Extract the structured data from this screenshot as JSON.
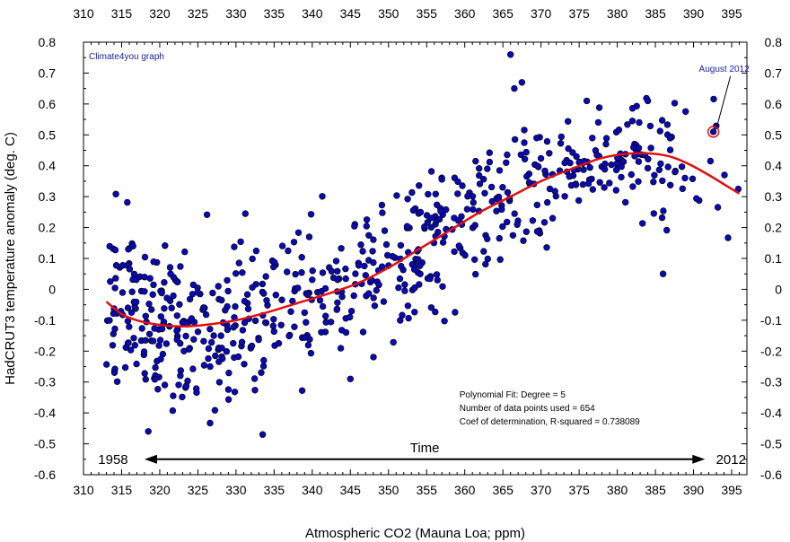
{
  "chart_data": {
    "type": "scatter",
    "xlabel": "Atmospheric CO2 (Mauna Loa; ppm)",
    "ylabel": "HadCRUT3 temperature anomaly (deg. C)",
    "xlim": [
      310,
      397
    ],
    "ylim": [
      -0.6,
      0.8
    ],
    "x_ticks": [
      310,
      315,
      320,
      325,
      330,
      335,
      340,
      345,
      350,
      355,
      360,
      365,
      370,
      375,
      380,
      385,
      390,
      395
    ],
    "y_ticks": [
      -0.6,
      -0.5,
      -0.4,
      -0.3,
      -0.2,
      -0.1,
      0,
      0.1,
      0.2,
      0.3,
      0.4,
      0.5,
      0.6,
      0.7,
      0.8
    ],
    "grid": false,
    "colors": {
      "points": "#0a0ab4",
      "fit": "#e01010",
      "note": "#1a1aa8"
    },
    "source_note": "Climate4you graph",
    "fit": {
      "label": "Polynomial Fit: Degree = 5",
      "n_points_text": "Number of data points used = 654",
      "r2_text": "Coef of determination, R-squared = 0.738089",
      "points": [
        [
          313,
          -0.04
        ],
        [
          315,
          -0.08
        ],
        [
          317,
          -0.1
        ],
        [
          320,
          -0.115
        ],
        [
          323,
          -0.12
        ],
        [
          326,
          -0.115
        ],
        [
          330,
          -0.1
        ],
        [
          334,
          -0.075
        ],
        [
          338,
          -0.045
        ],
        [
          342,
          -0.015
        ],
        [
          346,
          0.02
        ],
        [
          350,
          0.07
        ],
        [
          354,
          0.13
        ],
        [
          358,
          0.19
        ],
        [
          362,
          0.25
        ],
        [
          366,
          0.3
        ],
        [
          370,
          0.35
        ],
        [
          374,
          0.39
        ],
        [
          378,
          0.425
        ],
        [
          382,
          0.44
        ],
        [
          386,
          0.435
        ],
        [
          389,
          0.41
        ],
        [
          392,
          0.37
        ],
        [
          394,
          0.34
        ],
        [
          396,
          0.31
        ]
      ]
    },
    "highlight": {
      "label": "August 2012",
      "x": 392.6,
      "y": 0.51
    },
    "time_arrow": {
      "label": "Time",
      "start_label": "1958",
      "end_label": "2012",
      "x_start": 318,
      "x_end": 391.5,
      "y": -0.55
    },
    "scatter_ranges": [
      {
        "x0": 313,
        "x1": 318,
        "n": 60,
        "mu0": -0.04,
        "mu1": -0.07,
        "sd": 0.12
      },
      {
        "x0": 318,
        "x1": 324,
        "n": 80,
        "mu0": -0.1,
        "mu1": -0.12,
        "sd": 0.13
      },
      {
        "x0": 324,
        "x1": 330,
        "n": 60,
        "mu0": -0.12,
        "mu1": -0.1,
        "sd": 0.13
      },
      {
        "x0": 330,
        "x1": 336,
        "n": 50,
        "mu0": -0.1,
        "mu1": -0.06,
        "sd": 0.13
      },
      {
        "x0": 336,
        "x1": 342,
        "n": 45,
        "mu0": -0.05,
        "mu1": -0.01,
        "sd": 0.12
      },
      {
        "x0": 342,
        "x1": 348,
        "n": 45,
        "mu0": 0.0,
        "mu1": 0.05,
        "sd": 0.12
      },
      {
        "x0": 348,
        "x1": 354,
        "n": 55,
        "mu0": 0.06,
        "mu1": 0.13,
        "sd": 0.11
      },
      {
        "x0": 354,
        "x1": 360,
        "n": 55,
        "mu0": 0.14,
        "mu1": 0.21,
        "sd": 0.11
      },
      {
        "x0": 360,
        "x1": 366,
        "n": 45,
        "mu0": 0.22,
        "mu1": 0.3,
        "sd": 0.11
      },
      {
        "x0": 366,
        "x1": 372,
        "n": 40,
        "mu0": 0.3,
        "mu1": 0.36,
        "sd": 0.12
      },
      {
        "x0": 372,
        "x1": 378,
        "n": 40,
        "mu0": 0.38,
        "mu1": 0.42,
        "sd": 0.08
      },
      {
        "x0": 378,
        "x1": 384,
        "n": 40,
        "mu0": 0.42,
        "mu1": 0.44,
        "sd": 0.09
      },
      {
        "x0": 384,
        "x1": 390,
        "n": 30,
        "mu0": 0.43,
        "mu1": 0.41,
        "sd": 0.09
      },
      {
        "x0": 390,
        "x1": 397,
        "n": 9,
        "mu0": 0.39,
        "mu1": 0.38,
        "sd": 0.12
      }
    ],
    "notable_points": [
      [
        366,
        0.76
      ],
      [
        367.5,
        0.67
      ],
      [
        366.5,
        0.65
      ],
      [
        376,
        0.61
      ],
      [
        384,
        0.61
      ],
      [
        386,
        0.05
      ],
      [
        333.5,
        -0.47
      ],
      [
        318.5,
        -0.46
      ],
      [
        345,
        -0.29
      ],
      [
        316.5,
        0.14
      ]
    ]
  }
}
